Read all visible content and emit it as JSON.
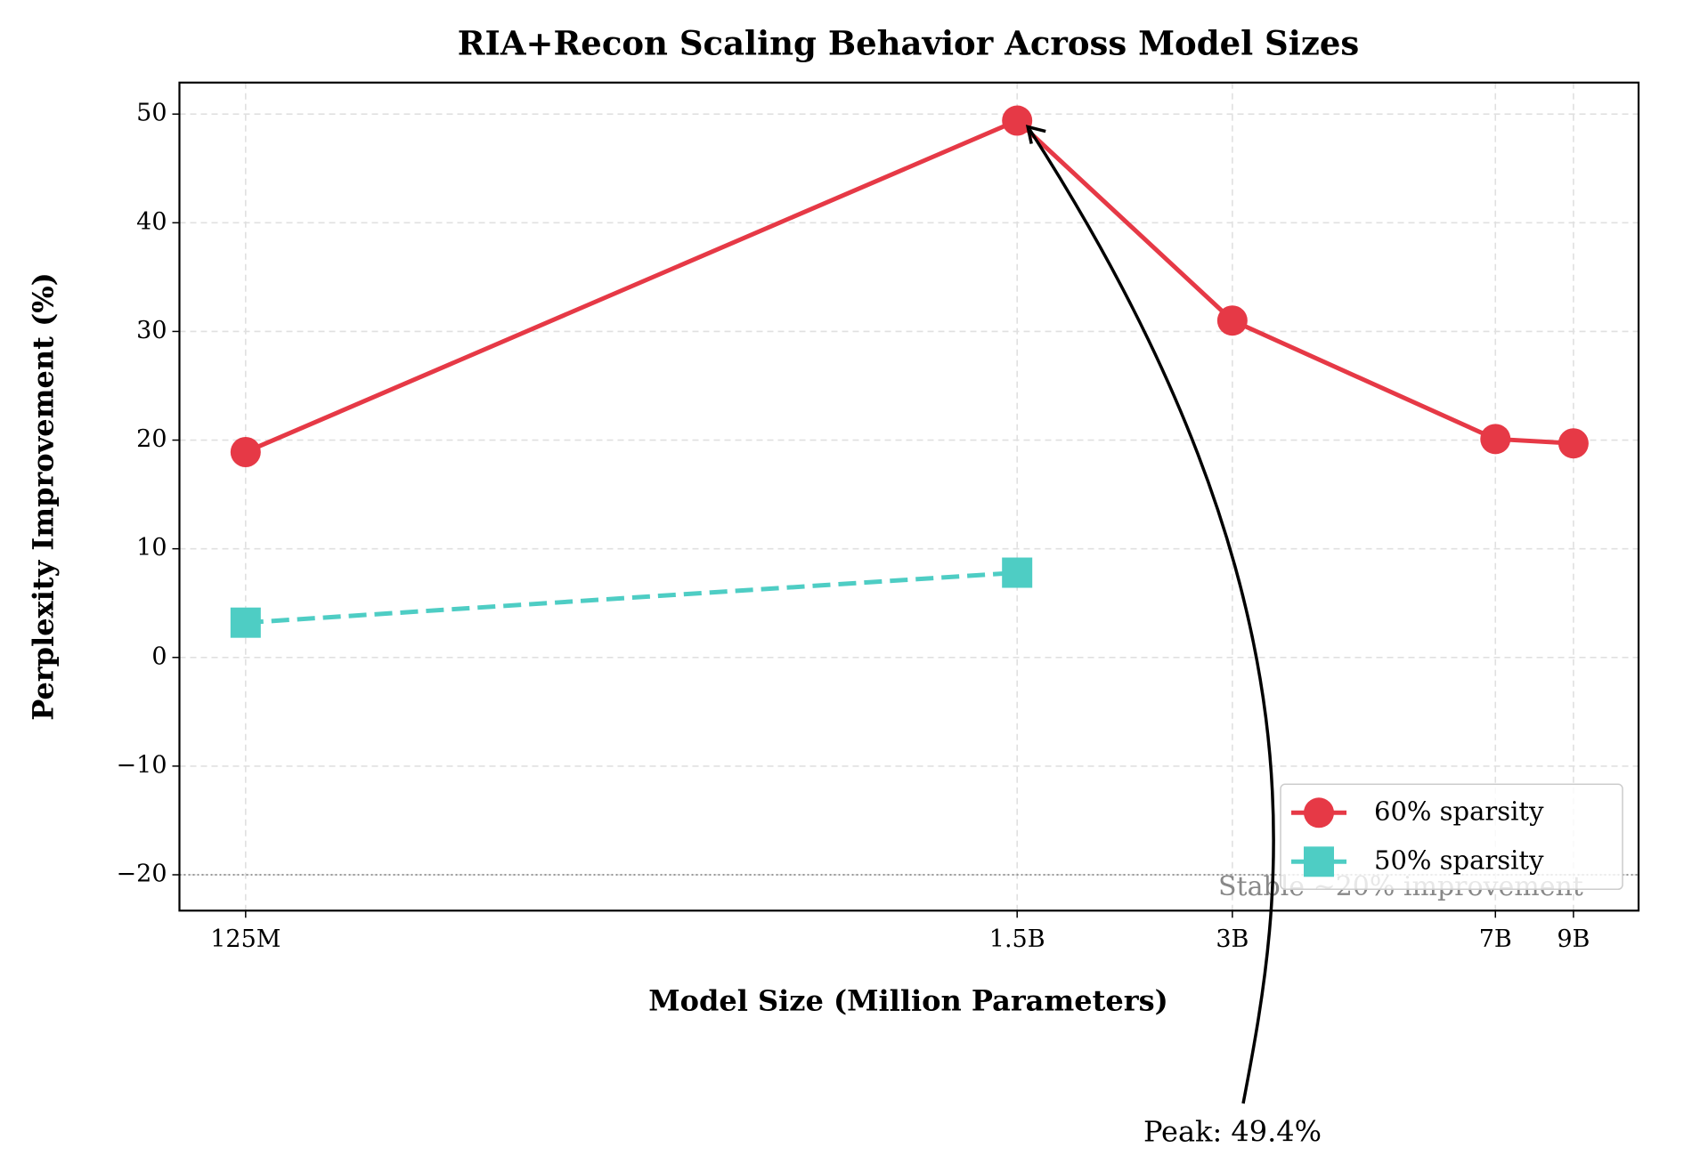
{
  "chart_data": {
    "type": "line",
    "title": "RIA+Recon Scaling Behavior Across Model Sizes",
    "xlabel": "Model Size (Million Parameters)",
    "ylabel": "Perplexity Improvement (%)",
    "xscale": "log",
    "x": [
      125,
      1500,
      3000,
      7000,
      9000
    ],
    "series": [
      {
        "name": "60% sparsity",
        "color": "#e63946",
        "marker": "circle",
        "linestyle": "solid",
        "values": [
          18.9,
          49.4,
          31.0,
          20.1,
          19.7
        ]
      },
      {
        "name": "50% sparsity",
        "color": "#4ecdc4",
        "marker": "square",
        "linestyle": "dashed",
        "values": [
          3.2,
          7.8,
          null,
          null,
          null
        ]
      }
    ],
    "xlim": [
      101,
      11100
    ],
    "ylim": [
      -23.3,
      52.9
    ],
    "xticks": [
      {
        "value": 125,
        "label": "125M"
      },
      {
        "value": 1500,
        "label": "1.5B"
      },
      {
        "value": 3000,
        "label": "3B"
      },
      {
        "value": 7000,
        "label": "7B"
      },
      {
        "value": 9000,
        "label": "9B"
      }
    ],
    "yticks": [
      {
        "value": -20,
        "label": "−20"
      },
      {
        "value": -10,
        "label": "−10"
      },
      0,
      10,
      20,
      30,
      40,
      50
    ],
    "grid": true,
    "legend": "lower right",
    "hline": {
      "value": -20,
      "label": "Stable ~20% improvement",
      "color": "#999999"
    },
    "annotation": {
      "text": "Peak: 49.4%",
      "series": 0,
      "index": 1
    }
  }
}
